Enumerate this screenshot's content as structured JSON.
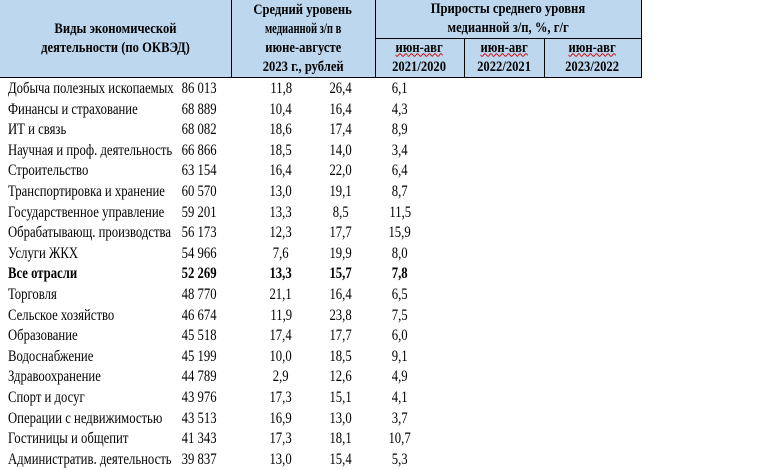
{
  "header": {
    "col_activity": "Виды экономической деятельности (по ОКВЭД)",
    "col_avg_line1": "Средний уровень",
    "col_avg_line2": "медианной з/п в",
    "col_avg_line3": "июне-августе",
    "col_avg_line4": "2023 г., рублей",
    "col_growth_line1": "Приросты среднего уровня",
    "col_growth_line2": "медианной з/п, %, г/г",
    "periods": [
      {
        "label": "июн-авг",
        "years": "2021/2020"
      },
      {
        "label": "июн-авг",
        "years": "2022/2021"
      },
      {
        "label": "июн-авг",
        "years": "2023/2022"
      }
    ]
  },
  "rows": [
    {
      "name": "Добыча полезных ископаемых",
      "value": "86 013",
      "g1": "11,8",
      "g2": "26,4",
      "g3": "6,1"
    },
    {
      "name": "Финансы и страхование",
      "value": "68 889",
      "g1": "10,4",
      "g2": "16,4",
      "g3": "4,3"
    },
    {
      "name": "ИТ и связь",
      "value": "68 082",
      "g1": "18,6",
      "g2": "17,4",
      "g3": "8,9"
    },
    {
      "name": "Научная и проф. деятельность",
      "value": "66 866",
      "g1": "18,5",
      "g2": "14,0",
      "g3": "3,4"
    },
    {
      "name": "Строительство",
      "value": "63 154",
      "g1": "16,4",
      "g2": "22,0",
      "g3": "6,4"
    },
    {
      "name": "Транспортировка и хранение",
      "value": "60 570",
      "g1": "13,0",
      "g2": "19,1",
      "g3": "8,7"
    },
    {
      "name": "Государственное управление",
      "value": "59 201",
      "g1": "13,3",
      "g2": "8,5",
      "g3": "11,5"
    },
    {
      "name": "Обрабатывающ. производства",
      "value": "56 173",
      "g1": "12,3",
      "g2": "17,7",
      "g3": "15,9"
    },
    {
      "name": "Услуги ЖКХ",
      "value": "54 966",
      "g1": "7,6",
      "g2": "19,9",
      "g3": "8,0"
    },
    {
      "name": "Все отрасли",
      "value": "52 269",
      "g1": "13,3",
      "g2": "15,7",
      "g3": "7,8"
    },
    {
      "name": "Торговля",
      "value": "48 770",
      "g1": "21,1",
      "g2": "16,4",
      "g3": "6,5"
    },
    {
      "name": "Сельское хозяйство",
      "value": "46 674",
      "g1": "11,9",
      "g2": "23,8",
      "g3": "7,5"
    },
    {
      "name": "Образование",
      "value": "45 518",
      "g1": "17,4",
      "g2": "17,7",
      "g3": "6,0"
    },
    {
      "name": "Водоснабжение",
      "value": "45 199",
      "g1": "10,0",
      "g2": "18,5",
      "g3": "9,1"
    },
    {
      "name": "Здравоохранение",
      "value": "44 789",
      "g1": "2,9",
      "g2": "12,6",
      "g3": "4,9"
    },
    {
      "name": "Спорт и досуг",
      "value": "43 976",
      "g1": "17,3",
      "g2": "15,1",
      "g3": "4,1"
    },
    {
      "name": "Операции с недвижимостью",
      "value": "43 513",
      "g1": "16,9",
      "g2": "13,0",
      "g3": "3,7"
    },
    {
      "name": "Гостиницы и общепит",
      "value": "41 343",
      "g1": "17,3",
      "g2": "18,1",
      "g3": "10,7"
    },
    {
      "name": "Административ. деятельность",
      "value": "39 837",
      "g1": "13,0",
      "g2": "15,4",
      "g3": "5,3"
    }
  ]
}
